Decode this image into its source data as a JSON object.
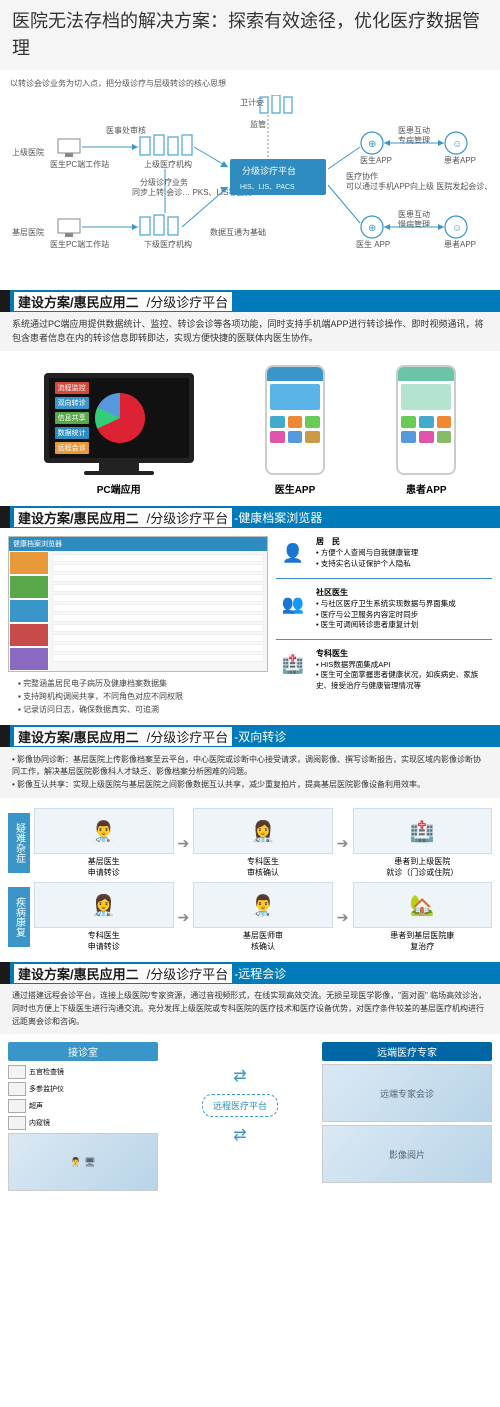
{
  "page_title": "医院无法存档的解决方案：探索有效途径，优化医疗数据管理",
  "sec1": {
    "header_main": "建设方案/惠民应用二",
    "header_sub": "/分级诊疗平台",
    "top_note": "以转诊会诊业务为切入点，把分级诊疗与层级转诊的核心思想",
    "labels": {
      "weijiwei": "卫计委",
      "jianguan": "监管",
      "yishichu": "医事处审核",
      "upper_hosp": "上级医院",
      "base_hosp": "基层医院",
      "pc_station": "医生PC端工作站",
      "upper_org": "上级医疗机构",
      "lower_org": "下级医疗机构",
      "fenji": "分级诊疗业务",
      "sync_note": "同步上转,会诊…\nPKS、LIS等业务",
      "platform": "分级诊疗平台",
      "platform_sub": "HIS、LIS、PACS",
      "data_base": "数据互通为基础",
      "doctor_app": "医生APP",
      "patient_app": "患者APP",
      "yh_hudong": "医患互动",
      "zhuanbing": "专病管理",
      "manbing": "慢病管理",
      "yl_xiezuo": "医疗协作",
      "xiezuo_note": "可以通过手机APP向上级\n医院发起会诊、转诊、\n预约等"
    },
    "colors": {
      "blue": "#3a96c8",
      "red": "#c94a4a",
      "navy": "#2a5a8a",
      "platform_bg": "#2e8cc0",
      "line": "#888"
    }
  },
  "sec2": {
    "header_main": "建设方案/惠民应用二",
    "header_sub": "/分级诊疗平台",
    "desc": "系统通过PC端应用提供数据统计、监控、转诊会诊等各项功能，同时支持手机端APP进行转诊操作、即时视频通讯，将包含患者信息在内的转诊信息即转即达，实现方便快捷的医联体内医生协作。",
    "tags": [
      {
        "label": "流程监控",
        "color": "#d24a3a"
      },
      {
        "label": "双向转诊",
        "color": "#3a96c8"
      },
      {
        "label": "信息共享",
        "color": "#5aa84a"
      },
      {
        "label": "数据统计",
        "color": "#2e8cc0"
      },
      {
        "label": "远程会诊",
        "color": "#e89a3a"
      }
    ],
    "labels": {
      "pc": "PC端应用",
      "doc": "医生APP",
      "pat": "患者APP"
    },
    "phone_doc": {
      "top": "#3a96c8",
      "banner": "#5ab4e8",
      "icons": [
        "#4ac",
        "#e83",
        "#6c5",
        "#d5a",
        "#59d",
        "#c94"
      ]
    },
    "phone_pat": {
      "top": "#6cc4a8",
      "banner": "#b4e4d0",
      "icons": [
        "#6c5",
        "#4ac",
        "#e83",
        "#59d",
        "#d5a",
        "#8b6"
      ]
    }
  },
  "sec3": {
    "header_main": "建设方案/惠民应用二",
    "header_sub": "/分级诊疗平台",
    "header_suffix": "-健康档案浏览器",
    "window_title": "健康档案浏览器",
    "side_colors": [
      "#e89a3a",
      "#5aa84a",
      "#3a96c8",
      "#c94a4a",
      "#8a6ac0"
    ],
    "left_bullets": [
      "完整涵盖居民电子病历及健康档案数据集",
      "支持跨机构调阅共享，不同角色对应不同权限",
      "记录访问日志，确保数据真实、可追溯"
    ],
    "roles": [
      {
        "icon": "👤",
        "name": "居　民",
        "color": "#e89a3a",
        "pts": [
          "方便个人查阅与自我健康管理",
          "支持实名认证保护个人隐私"
        ]
      },
      {
        "icon": "👥",
        "name": "社区医生",
        "color": "#5aa84a",
        "pts": [
          "与社区医疗卫生系统实现数据与界面集成",
          "医疗与公卫服务内容定时同步",
          "医生可调阅转诊患者康复计划"
        ]
      },
      {
        "icon": "🏥",
        "name": "专科医生",
        "color": "#3a96c8",
        "pts": [
          "HIS数据界面集成API",
          "医生可全面掌握患者健康状况，如疾病史、家族史、接受治疗与健康管理情况等"
        ]
      }
    ]
  },
  "sec4": {
    "header_main": "建设方案/惠民应用二",
    "header_sub": "/分级诊疗平台",
    "header_suffix": "-双向转诊",
    "desc": [
      "影像协同诊断：基层医院上传影像档案至云平台，中心医院或诊断中心接受请求，调阅影像、撰写诊断报告，实现区域内影像诊断协同工作，解决基层医院影像科人才缺乏、影像档案分析困难的问题。",
      "影像互认共享：实现上级医院与基层医院之间影像数据互认共享，减少重复拍片，提高基层医院影像设备利用效率。"
    ],
    "flow1": {
      "tag": "疑难杂症",
      "steps": [
        {
          "emoji": "👨‍⚕️",
          "label": "基层医生\n申请转诊"
        },
        {
          "emoji": "👩‍⚕️",
          "label": "专科医生\n审核确认"
        },
        {
          "emoji": "🏥",
          "label": "患者到上级医院\n就诊（门诊或住院）"
        }
      ]
    },
    "flow2": {
      "tag": "疾病康复",
      "steps": [
        {
          "emoji": "👩‍⚕️",
          "label": "专科医生\n申请转诊"
        },
        {
          "emoji": "👨‍⚕️",
          "label": "基层医师审\n核确认"
        },
        {
          "emoji": "🏡",
          "label": "患者到基层医院康\n复治疗"
        }
      ]
    }
  },
  "sec5": {
    "header_main": "建设方案/惠民应用二",
    "header_sub": "/分级诊疗平台",
    "header_suffix": "-远程会诊",
    "desc": "通过搭建远程会诊平台，连接上级医院/专家资源，通过音视频形式，在线实现高效交流。无损呈现医学影像，\"面对面\" 临场高效诊治，同时也方便上下级医生进行沟通交流。充分发挥上级医院或专科医院的医疗技术和医疗设备优势，对医疗条件较差的基层医疗机构进行远距离会诊和咨询。",
    "left_hdr": "接诊室",
    "right_hdr": "远端医疗专家",
    "platform": "远程医疗平台",
    "equipment": [
      "五官检查镜",
      "多参监护仪",
      "超声",
      "内窥镜"
    ],
    "right_photos": [
      "远端专家会诊",
      "影像阅片"
    ]
  }
}
